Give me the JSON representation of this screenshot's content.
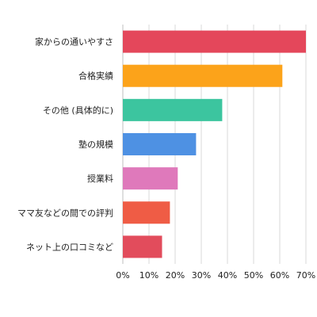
{
  "chart_data": {
    "type": "bar",
    "orientation": "horizontal",
    "categories": [
      "家からの通いやすさ",
      "合格実績",
      "その他 (具体的に)",
      "塾の規模",
      "授業料",
      "ママ友などの間での評判",
      "ネット上の口コミなど"
    ],
    "values": [
      70,
      61,
      38,
      28,
      21,
      18,
      15
    ],
    "colors": [
      "#e4475b",
      "#fca31a",
      "#3cc59f",
      "#4e91e3",
      "#df79bb",
      "#ef5c45",
      "#e24c5c"
    ],
    "xlim": [
      0,
      70
    ],
    "xticks": [
      "0%",
      "10%",
      "20%",
      "30%",
      "40%",
      "50%",
      "60%",
      "70%"
    ],
    "grid": true,
    "legend": "none"
  }
}
